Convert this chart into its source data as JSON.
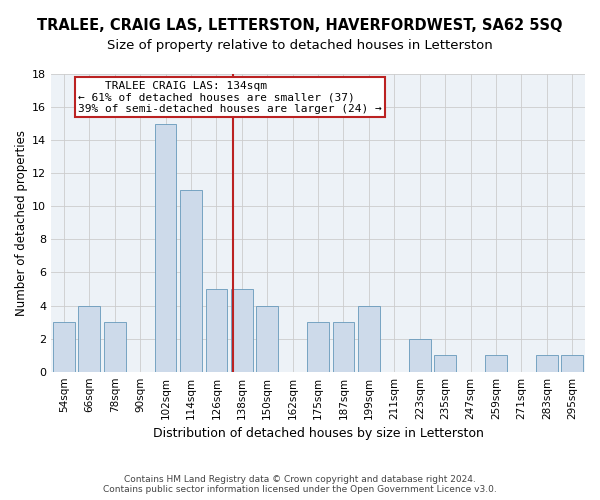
{
  "title": "TRALEE, CRAIG LAS, LETTERSTON, HAVERFORDWEST, SA62 5SQ",
  "subtitle": "Size of property relative to detached houses in Letterston",
  "xlabel": "Distribution of detached houses by size in Letterston",
  "ylabel": "Number of detached properties",
  "categories": [
    "54sqm",
    "66sqm",
    "78sqm",
    "90sqm",
    "102sqm",
    "114sqm",
    "126sqm",
    "138sqm",
    "150sqm",
    "162sqm",
    "175sqm",
    "187sqm",
    "199sqm",
    "211sqm",
    "223sqm",
    "235sqm",
    "247sqm",
    "259sqm",
    "271sqm",
    "283sqm",
    "295sqm"
  ],
  "values": [
    3,
    4,
    3,
    0,
    15,
    11,
    5,
    5,
    4,
    0,
    3,
    3,
    4,
    0,
    2,
    1,
    0,
    1,
    0,
    1,
    1
  ],
  "bar_color": "#cddaea",
  "bar_edge_color": "#6699bb",
  "vline_color": "#bb2222",
  "annotation_line1": "    TRALEE CRAIG LAS: 134sqm",
  "annotation_line2": "← 61% of detached houses are smaller (37)",
  "annotation_line3": "39% of semi-detached houses are larger (24) →",
  "annotation_box_color": "#ffffff",
  "annotation_box_edge_color": "#bb2222",
  "ylim": [
    0,
    18
  ],
  "yticks": [
    0,
    2,
    4,
    6,
    8,
    10,
    12,
    14,
    16,
    18
  ],
  "grid_color": "#cccccc",
  "background_color": "#edf2f7",
  "footer_text": "Contains HM Land Registry data © Crown copyright and database right 2024.\nContains public sector information licensed under the Open Government Licence v3.0.",
  "title_fontsize": 10.5,
  "subtitle_fontsize": 9.5,
  "xlabel_fontsize": 9,
  "ylabel_fontsize": 8.5,
  "tick_fontsize": 7.5,
  "annotation_fontsize": 8,
  "footer_fontsize": 6.5
}
